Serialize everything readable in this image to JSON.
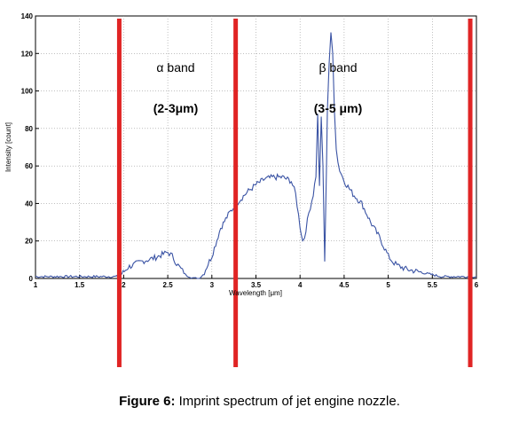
{
  "chart_data": {
    "type": "line",
    "xlabel": "Wavelength [μm]",
    "ylabel": "Intensity [count]",
    "xlim": [
      1,
      6
    ],
    "ylim": [
      0,
      140
    ],
    "x_ticks": [
      1,
      1.5,
      2,
      2.5,
      3,
      3.5,
      4,
      4.5,
      5,
      5.5,
      6
    ],
    "x_tick_labels": [
      "1",
      "1.5",
      "2",
      "2.5",
      "3",
      "3.5",
      "4",
      "4.5",
      "5",
      "5.5",
      "6"
    ],
    "y_ticks": [
      0,
      20,
      40,
      60,
      80,
      100,
      120,
      140
    ],
    "y_tick_labels": [
      "0",
      "20",
      "40",
      "60",
      "80",
      "100",
      "120",
      "140"
    ],
    "grid": true,
    "series_color": "#3a53a4",
    "marker_color": "#e02424",
    "vertical_markers": [
      1.95,
      3.27,
      5.93
    ],
    "annotations": [
      {
        "label": "α band",
        "range": "(2-3μm)"
      },
      {
        "label": "β band",
        "range": "(3-5 μm)"
      }
    ],
    "series": [
      {
        "x": [
          1.0,
          1.2,
          1.4,
          1.6,
          1.8,
          1.95,
          2.05,
          2.2,
          2.35,
          2.45,
          2.5,
          2.55,
          2.6,
          2.65,
          2.7,
          2.75,
          2.8,
          2.85,
          2.9,
          3.0,
          3.1,
          3.2,
          3.3,
          3.4,
          3.5,
          3.6,
          3.7,
          3.8,
          3.9,
          3.95,
          4.0,
          4.03,
          4.05,
          4.1,
          4.15,
          4.18,
          4.2,
          4.22,
          4.24,
          4.26,
          4.27,
          4.28,
          4.3,
          4.31,
          4.33,
          4.35,
          4.37,
          4.39,
          4.41,
          4.43,
          4.45,
          4.5,
          4.6,
          4.7,
          4.8,
          4.9,
          5.0,
          5.05,
          5.1,
          5.2,
          5.3,
          5.4,
          5.5,
          5.6,
          5.7,
          5.8,
          5.9,
          6.0
        ],
        "y": [
          1,
          1,
          1,
          1,
          1,
          1,
          6,
          9,
          11,
          13,
          14,
          12,
          8,
          5,
          2,
          1,
          0,
          0,
          2,
          12,
          27,
          35,
          41,
          46,
          50,
          53,
          54,
          54,
          52,
          45,
          28,
          20,
          22,
          35,
          45,
          55,
          87,
          50,
          85,
          60,
          35,
          8,
          60,
          90,
          115,
          130,
          120,
          90,
          70,
          62,
          58,
          52,
          45,
          40,
          30,
          22,
          12,
          9,
          7,
          5,
          4,
          3,
          2,
          1,
          1,
          1,
          1,
          1
        ]
      }
    ]
  },
  "caption": {
    "label": "Figure 6:",
    "text": " Imprint spectrum of jet engine nozzle."
  }
}
